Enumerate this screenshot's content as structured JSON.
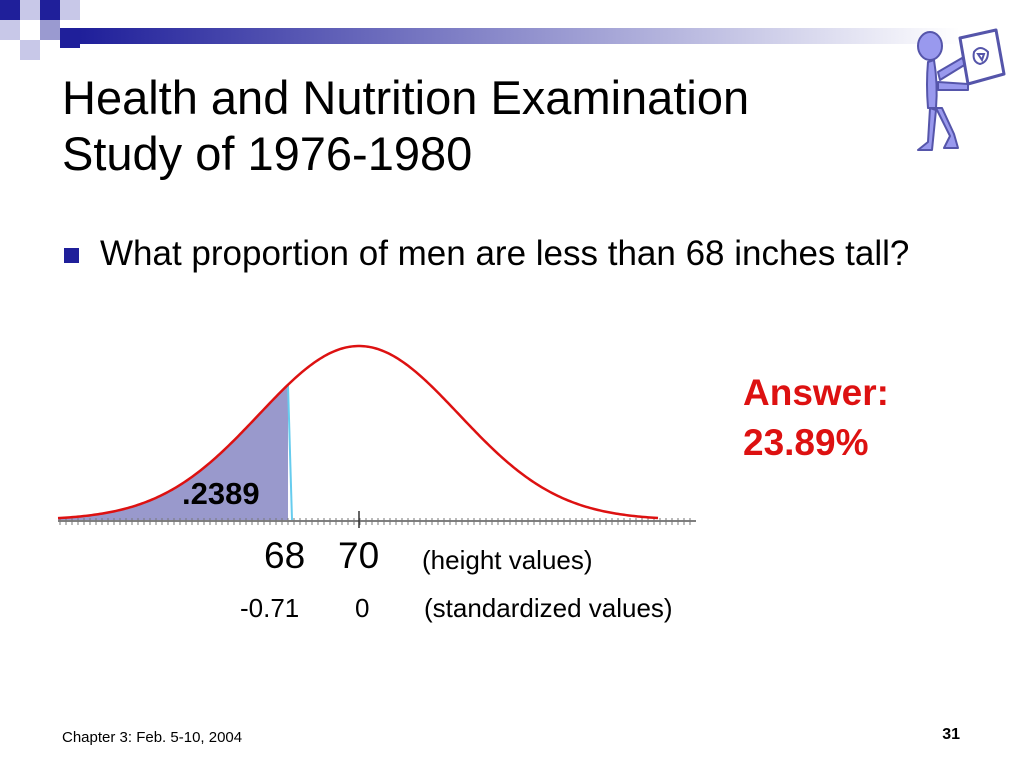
{
  "slide": {
    "title_line1": "Health and Nutrition Examination",
    "title_line2": "Study of 1976-1980",
    "bullet": "What proportion of men are less than 68 inches tall?",
    "answer_label": "Answer:",
    "answer_value": "23.89%",
    "footer": "Chapter 3: Feb. 5-10, 2004",
    "page_number": "31"
  },
  "figure": {
    "area_label": ".2389",
    "height_values": [
      "68",
      "70"
    ],
    "height_caption": "(height values)",
    "standardized_values": [
      "-0.71",
      "0"
    ],
    "standardized_caption": "(standardized values)",
    "mean": 70,
    "cutoff": 68,
    "z_cutoff": -0.71,
    "shaded_proportion": 0.2389
  },
  "colors": {
    "accent": "#1f1f9a",
    "curve": "#dd1111",
    "shade": "#9999cc",
    "answer": "#dd1111"
  },
  "icons": {
    "clipart": "person-holding-sign-icon"
  }
}
